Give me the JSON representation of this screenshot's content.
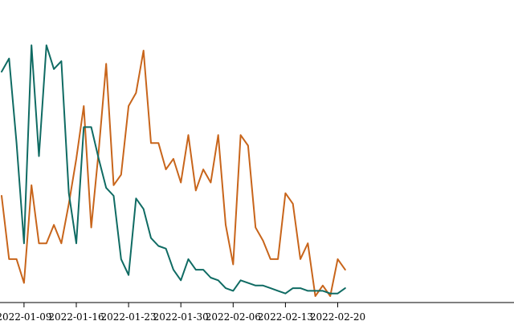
{
  "chart_data": {
    "type": "line",
    "title": "",
    "xlabel": "",
    "ylabel": "",
    "x_start": "2022-01-06",
    "x_ticks": [
      "2022-01-09",
      "2022-01-16",
      "2022-01-23",
      "2022-01-30",
      "2022-02-06",
      "2022-02-13",
      "2022-02-20"
    ],
    "ylim": [
      0,
      100
    ],
    "grid": false,
    "legend": "none",
    "series": [
      {
        "color": "#c8651b",
        "values": [
          38,
          14,
          14,
          5,
          42,
          20,
          20,
          27,
          20,
          35,
          52,
          72,
          26,
          55,
          88,
          42,
          46,
          72,
          77,
          93,
          58,
          58,
          48,
          52,
          43,
          61,
          40,
          48,
          43,
          61,
          27,
          12,
          61,
          57,
          26,
          21,
          14,
          14,
          39,
          35,
          14,
          20,
          0,
          4,
          0,
          14,
          10
        ]
      },
      {
        "color": "#0f6b63",
        "values": [
          85,
          90,
          58,
          20,
          95,
          53,
          95,
          86,
          89,
          39,
          20,
          64,
          64,
          52,
          41,
          38,
          14,
          8,
          37,
          33,
          22,
          19,
          18,
          10,
          6,
          14,
          10,
          10,
          7,
          6,
          3,
          2,
          6,
          5,
          4,
          4,
          3,
          2,
          1,
          3,
          3,
          2,
          2,
          2,
          1,
          1,
          3
        ]
      }
    ]
  }
}
